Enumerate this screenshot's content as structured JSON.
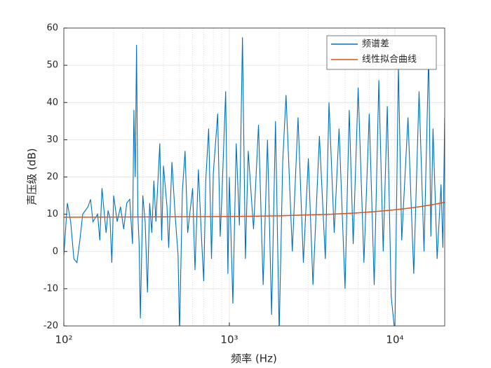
{
  "chart_data": {
    "type": "line",
    "xlabel": "频率 (Hz)",
    "ylabel": "声压级 (dB)",
    "xscale": "log",
    "grid": true,
    "legend": "upper right",
    "xlim": [
      100,
      20000
    ],
    "ylim": [
      -20,
      60
    ],
    "xticks": [
      {
        "value": 100,
        "label": "10²"
      },
      {
        "value": 1000,
        "label": "10³"
      },
      {
        "value": 10000,
        "label": "10⁴"
      }
    ],
    "xminorticks": [
      200,
      300,
      400,
      500,
      600,
      700,
      800,
      900,
      2000,
      3000,
      4000,
      5000,
      6000,
      7000,
      8000,
      9000
    ],
    "yticks": [
      -20,
      -10,
      0,
      10,
      20,
      30,
      40,
      50,
      60
    ],
    "series": [
      {
        "name": "频谱差",
        "color": "#0072BD",
        "x": [
          100,
          105,
          110,
          115,
          120,
          125,
          130,
          140,
          145,
          150,
          160,
          165,
          170,
          180,
          185,
          190,
          195,
          200,
          210,
          220,
          230,
          240,
          250,
          260,
          265,
          270,
          275,
          280,
          285,
          290,
          300,
          310,
          320,
          330,
          340,
          350,
          360,
          380,
          390,
          400,
          420,
          430,
          450,
          470,
          490,
          500,
          520,
          540,
          560,
          600,
          620,
          650,
          680,
          700,
          720,
          750,
          780,
          800,
          850,
          880,
          900,
          950,
          980,
          1000,
          1050,
          1100,
          1150,
          1200,
          1250,
          1300,
          1400,
          1500,
          1600,
          1700,
          1800,
          1900,
          2000,
          2100,
          2200,
          2400,
          2600,
          2800,
          3000,
          3200,
          3500,
          3800,
          4000,
          4300,
          4600,
          5000,
          5300,
          5600,
          6000,
          6500,
          7000,
          7500,
          8000,
          8500,
          9000,
          9500,
          10000,
          10500,
          11000,
          12000,
          13000,
          14000,
          15000,
          16000,
          16500,
          17000,
          18000,
          19000,
          19500,
          20000
        ],
        "values": [
          -1,
          13,
          8,
          -2,
          -3,
          3,
          10,
          12,
          14,
          8,
          10,
          3,
          17,
          5,
          11,
          9,
          -3,
          15,
          8,
          12,
          6,
          13,
          14,
          2,
          38,
          20,
          55.5,
          10,
          2,
          -18,
          15,
          8,
          -11,
          13,
          5,
          19,
          8,
          29,
          3,
          23,
          12,
          1,
          24,
          10,
          -1,
          -22,
          16,
          27,
          5,
          17,
          -5,
          22,
          3,
          -8,
          19,
          33,
          -2,
          21,
          37,
          4,
          14,
          43,
          -6,
          20,
          -14,
          29,
          7,
          57.5,
          -2,
          27,
          6,
          34,
          -9,
          30,
          -17,
          35,
          -22,
          24,
          42,
          0,
          36,
          -3,
          25,
          -9,
          31,
          -2,
          40,
          5,
          33,
          -10,
          38,
          2,
          44,
          -3,
          37,
          -9,
          46,
          0,
          39,
          -12,
          -22,
          50,
          3,
          36,
          -6,
          43,
          0,
          53,
          4,
          33,
          -2,
          18,
          1,
          36
        ]
      },
      {
        "name": "线性拟合曲线",
        "color": "#D95319",
        "x": [
          100,
          1000,
          2000,
          4000,
          6000,
          8000,
          10000,
          12000,
          14000,
          16000,
          18000,
          20000
        ],
        "values": [
          9.2,
          9.38,
          9.58,
          9.98,
          10.38,
          10.79,
          11.19,
          11.59,
          11.99,
          12.4,
          12.8,
          13.2
        ]
      }
    ]
  }
}
